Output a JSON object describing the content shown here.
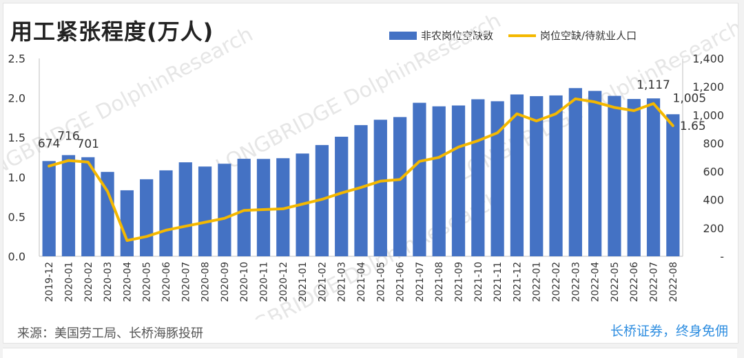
{
  "title": "用工紧张程度(万人)",
  "legend": {
    "bars": "非农岗位空缺数",
    "line": "岗位空缺/待就业人口"
  },
  "source": "来源：美国劳工局、长桥海豚投研",
  "brand": "长桥证券，终身免佣",
  "watermark": "LONGBRIDGE DolphinResearch",
  "colors": {
    "bar": "#4472c4",
    "line": "#f4b800"
  },
  "chart_data": {
    "type": "bar",
    "categories": [
      "2019-12",
      "2020-01",
      "2020-02",
      "2020-03",
      "2020-04",
      "2020-05",
      "2020-06",
      "2020-07",
      "2020-08",
      "2020-09",
      "2020-10",
      "2020-11",
      "2020-12",
      "2021-01",
      "2021-02",
      "2021-03",
      "2021-04",
      "2021-05",
      "2021-06",
      "2021-07",
      "2021-08",
      "2021-09",
      "2021-10",
      "2021-11",
      "2021-12",
      "2022-01",
      "2022-02",
      "2022-03",
      "2022-04",
      "2022-05",
      "2022-06",
      "2022-07",
      "2022-08"
    ],
    "series": [
      {
        "name": "非农岗位空缺数",
        "type": "bar",
        "axis": "right",
        "values": [
          674,
          716,
          701,
          597,
          467,
          545,
          608,
          665,
          635,
          655,
          690,
          689,
          694,
          727,
          787,
          846,
          928,
          966,
          985,
          1086,
          1061,
          1067,
          1111,
          1097,
          1145,
          1133,
          1138,
          1190,
          1170,
          1135,
          1113,
          1117,
          1005
        ]
      },
      {
        "name": "岗位空缺/待就业人口",
        "type": "line",
        "axis": "left",
        "values": [
          1.14,
          1.21,
          1.19,
          0.82,
          0.2,
          0.25,
          0.33,
          0.38,
          0.43,
          0.48,
          0.58,
          0.59,
          0.6,
          0.66,
          0.72,
          0.8,
          0.87,
          0.95,
          0.97,
          1.2,
          1.25,
          1.38,
          1.46,
          1.56,
          1.8,
          1.71,
          1.8,
          1.99,
          1.95,
          1.88,
          1.84,
          1.93,
          1.65
        ]
      }
    ],
    "left_axis": {
      "ylim": [
        0,
        2.5
      ],
      "ticks": [
        "0.0",
        "0.5",
        "1.0",
        "1.5",
        "2.0",
        "2.5"
      ]
    },
    "right_axis": {
      "ylim": [
        0,
        1400
      ],
      "ticks": [
        "-",
        "200",
        "400",
        "600",
        "800",
        "1,000",
        "1,200",
        "1,400"
      ]
    },
    "data_labels": [
      {
        "index": 0,
        "text": "674"
      },
      {
        "index": 1,
        "text": "716"
      },
      {
        "index": 2,
        "text": "701"
      },
      {
        "index": 31,
        "text": "1,117"
      },
      {
        "index": 32,
        "text": "1,005"
      },
      {
        "index": 32,
        "text": "1.65"
      }
    ]
  }
}
